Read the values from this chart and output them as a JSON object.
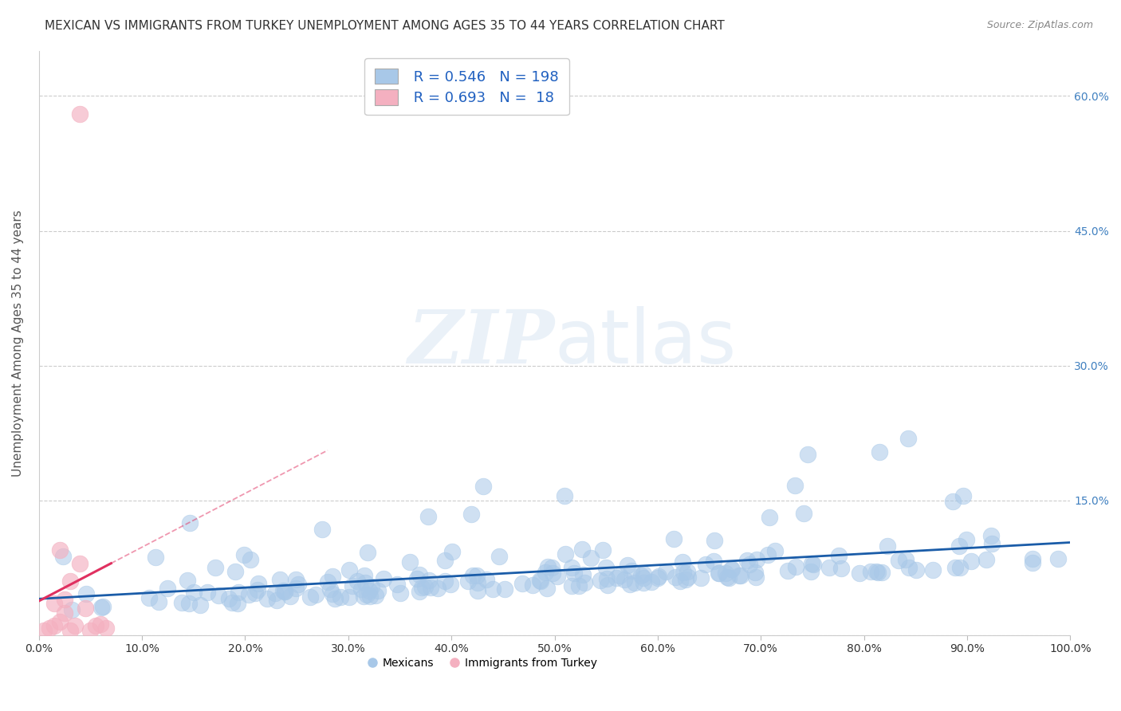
{
  "title": "MEXICAN VS IMMIGRANTS FROM TURKEY UNEMPLOYMENT AMONG AGES 35 TO 44 YEARS CORRELATION CHART",
  "source": "Source: ZipAtlas.com",
  "ylabel": "Unemployment Among Ages 35 to 44 years",
  "xlim": [
    0,
    1.0
  ],
  "ylim": [
    0,
    0.65
  ],
  "xticks": [
    0.0,
    0.1,
    0.2,
    0.3,
    0.4,
    0.5,
    0.6,
    0.7,
    0.8,
    0.9,
    1.0
  ],
  "xtick_labels": [
    "0.0%",
    "10.0%",
    "20.0%",
    "30.0%",
    "40.0%",
    "50.0%",
    "60.0%",
    "70.0%",
    "80.0%",
    "90.0%",
    "100.0%"
  ],
  "ytick_vals": [
    0.0,
    0.15,
    0.3,
    0.45,
    0.6
  ],
  "ytick_labels_right": [
    "",
    "15.0%",
    "30.0%",
    "45.0%",
    "60.0%"
  ],
  "r_mexican": 0.546,
  "n_mexican": 198,
  "r_turkey": 0.693,
  "n_turkey": 18,
  "blue_scatter_color": "#a8c8e8",
  "pink_scatter_color": "#f4b0c0",
  "blue_line_color": "#1a5ca8",
  "pink_line_color": "#e03060",
  "legend_text_color": "#2060c0",
  "watermark_zip": "ZIP",
  "watermark_atlas": "atlas",
  "background_color": "#ffffff",
  "grid_color": "#cccccc",
  "title_color": "#333333",
  "source_color": "#888888",
  "ylabel_color": "#555555",
  "tick_color": "#333333",
  "right_tick_color": "#4080c0"
}
